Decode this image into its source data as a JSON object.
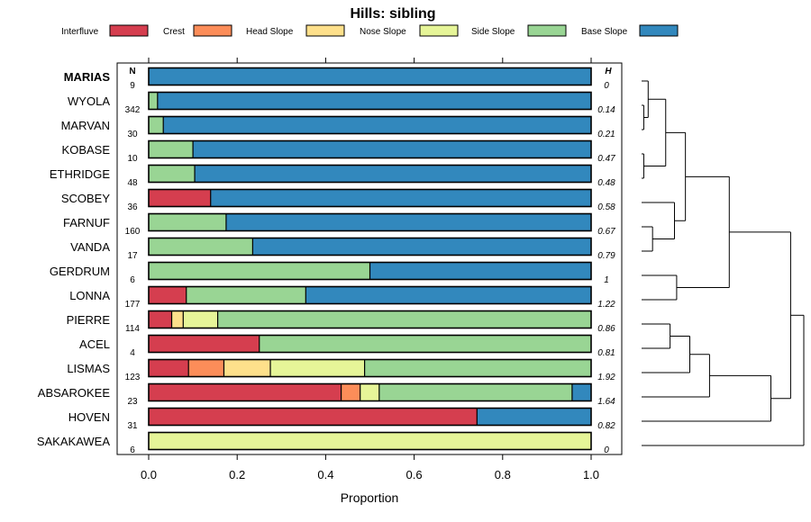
{
  "chart_data": {
    "type": "bar",
    "orientation": "horizontal",
    "stacked": true,
    "title": "Hills: sibling",
    "xlabel": "Proportion",
    "ylabel": "",
    "xlim": [
      0,
      1
    ],
    "x_ticks": [
      "0.0",
      "0.2",
      "0.4",
      "0.6",
      "0.8",
      "1.0"
    ],
    "n_header": "N",
    "h_header": "H",
    "legend": [
      {
        "name": "Interfluve",
        "color": "#D53E4F"
      },
      {
        "name": "Crest",
        "color": "#FC8D59"
      },
      {
        "name": "Head Slope",
        "color": "#FEE08B"
      },
      {
        "name": "Nose Slope",
        "color": "#E6F598"
      },
      {
        "name": "Side Slope",
        "color": "#99D594"
      },
      {
        "name": "Base Slope",
        "color": "#3288BD"
      }
    ],
    "categories": [
      "MARIAS",
      "WYOLA",
      "MARVAN",
      "KOBASE",
      "ETHRIDGE",
      "SCOBEY",
      "FARNUF",
      "VANDA",
      "GERDRUM",
      "LONNA",
      "PIERRE",
      "ACEL",
      "LISMAS",
      "ABSAROKEE",
      "HOVEN",
      "SAKAKAWEA"
    ],
    "highlight": "MARIAS",
    "n": [
      "9",
      "342",
      "30",
      "10",
      "48",
      "36",
      "160",
      "17",
      "6",
      "177",
      "114",
      "4",
      "123",
      "23",
      "31",
      "6"
    ],
    "h": [
      "0",
      "0.14",
      "0.21",
      "0.47",
      "0.48",
      "0.58",
      "0.67",
      "0.79",
      "1",
      "1.22",
      "0.86",
      "0.81",
      "1.92",
      "1.64",
      "0.82",
      "0"
    ],
    "series": [
      {
        "name": "Interfluve",
        "values": [
          0,
          0,
          0,
          0,
          0,
          0.14,
          0,
          0,
          0,
          0.085,
          0.052,
          0.25,
          0.09,
          0.435,
          0.742,
          0
        ]
      },
      {
        "name": "Crest",
        "values": [
          0,
          0,
          0,
          0,
          0,
          0,
          0,
          0,
          0,
          0,
          0,
          0,
          0.08,
          0.043,
          0,
          0
        ]
      },
      {
        "name": "Head Slope",
        "values": [
          0,
          0,
          0,
          0,
          0,
          0,
          0,
          0,
          0,
          0,
          0.026,
          0,
          0.105,
          0,
          0,
          0
        ]
      },
      {
        "name": "Nose Slope",
        "values": [
          0,
          0,
          0,
          0,
          0,
          0,
          0,
          0,
          0,
          0,
          0.078,
          0,
          0.213,
          0.043,
          0,
          1
        ]
      },
      {
        "name": "Side Slope",
        "values": [
          0,
          0.02,
          0.033,
          0.1,
          0.104,
          0,
          0.175,
          0.235,
          0.5,
          0.27,
          0.844,
          0.75,
          0.512,
          0.436,
          0,
          0
        ]
      },
      {
        "name": "Base Slope",
        "values": [
          1,
          0.98,
          0.967,
          0.9,
          0.896,
          0.86,
          0.825,
          0.765,
          0.5,
          0.645,
          0,
          0,
          0,
          0.043,
          0.258,
          0
        ]
      }
    ],
    "dendrogram": {
      "leaves": [
        "MARIAS",
        "WYOLA",
        "MARVAN",
        "KOBASE",
        "ETHRIDGE",
        "SCOBEY",
        "FARNUF",
        "VANDA",
        "GERDRUM",
        "LONNA",
        "PIERRE",
        "ACEL",
        "LISMAS",
        "ABSAROKEE",
        "HOVEN",
        "SAKAKAWEA"
      ],
      "merges": [
        {
          "a": "WYOLA",
          "b": "MARVAN",
          "height": 0.01
        },
        {
          "a": "KOBASE",
          "b": "ETHRIDGE",
          "height": 0.01
        },
        {
          "a": "MARIAS",
          "b": "WYOLA+MARVAN",
          "height": 0.03
        },
        {
          "a": "MARIAS+WYOLA+MARVAN",
          "b": "KOBASE+ETHRIDGE",
          "height": 0.11
        },
        {
          "a": "FARNUF",
          "b": "VANDA",
          "height": 0.05
        },
        {
          "a": "SCOBEY",
          "b": "FARNUF+VANDA",
          "height": 0.15
        },
        {
          "a": "top6",
          "b": "SCOBEY+FARNUF+VANDA",
          "height": 0.2
        },
        {
          "a": "GERDRUM",
          "b": "LONNA",
          "height": 0.16
        },
        {
          "a": "top9",
          "b": "GERDRUM+LONNA",
          "height": 0.4
        },
        {
          "a": "PIERRE",
          "b": "ACEL",
          "height": 0.13
        },
        {
          "a": "PIERRE+ACEL",
          "b": "LISMAS",
          "height": 0.22
        },
        {
          "a": "PIERRE+ACEL+LISMAS",
          "b": "ABSAROKEE",
          "height": 0.31
        },
        {
          "a": "group4",
          "b": "HOVEN",
          "height": 0.59
        },
        {
          "a": "top11",
          "b": "group5",
          "height": 0.68
        },
        {
          "a": "all15",
          "b": "SAKAKAWEA",
          "height": 0.74
        }
      ]
    }
  }
}
